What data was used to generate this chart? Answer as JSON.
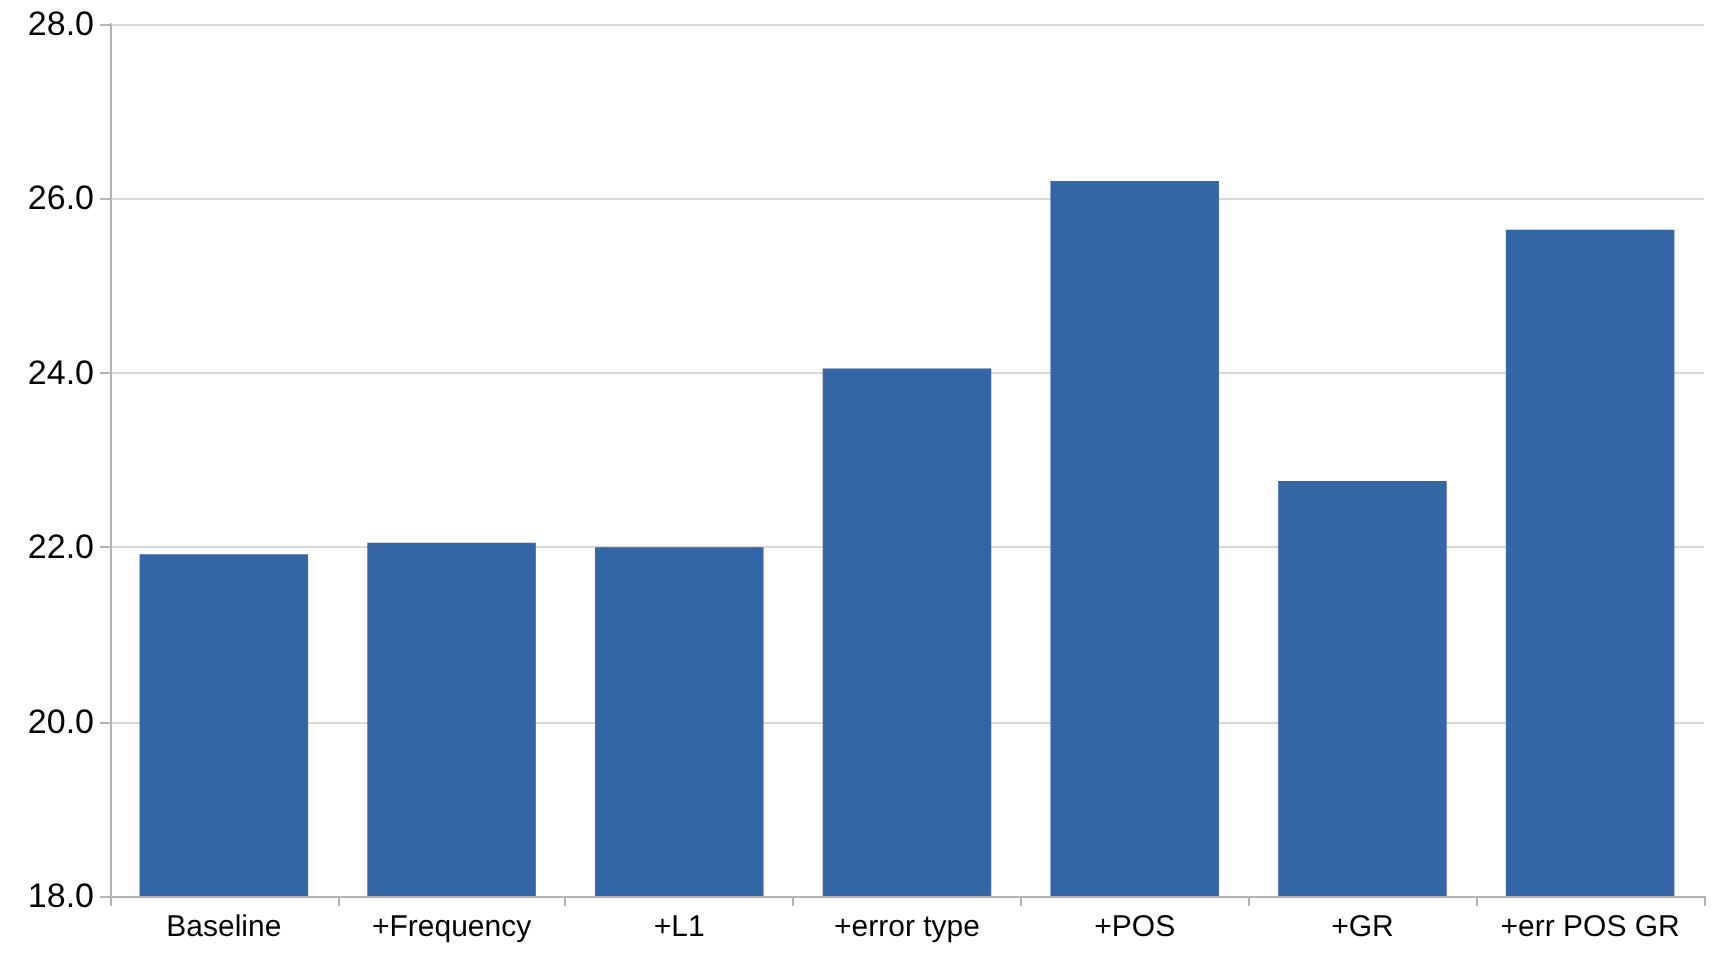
{
  "chart_data": {
    "type": "bar",
    "categories": [
      "Baseline",
      "+Frequency",
      "+L1",
      "+error type",
      "+POS",
      "+GR",
      "+err POS GR"
    ],
    "series": [
      {
        "color": "#3465a4",
        "values": [
          21.92,
          22.05,
          22.0,
          24.05,
          26.2,
          22.76,
          25.64
        ]
      }
    ],
    "ylim": [
      18,
      28
    ],
    "yticks": [
      {
        "value": 18,
        "label": "18.0"
      },
      {
        "value": 20,
        "label": "20.0"
      },
      {
        "value": 22,
        "label": "22.0"
      },
      {
        "value": 24,
        "label": "24.0"
      },
      {
        "value": 26,
        "label": "26.0"
      },
      {
        "value": 28,
        "label": "28.0"
      }
    ],
    "grid": "y"
  }
}
